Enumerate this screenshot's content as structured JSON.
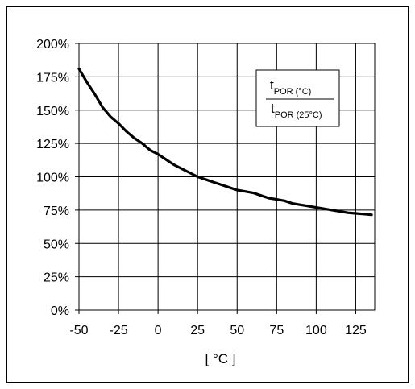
{
  "chart_data": {
    "type": "line",
    "title": "",
    "xlabel": "[ °C ]",
    "ylabel": "",
    "xlim": [
      -50,
      137
    ],
    "ylim": [
      0,
      200
    ],
    "x_ticks": [
      -50,
      -25,
      0,
      25,
      50,
      75,
      100,
      125
    ],
    "x_tick_labels": [
      "-50",
      "-25",
      "0",
      "25",
      "50",
      "75",
      "100",
      "125"
    ],
    "y_ticks": [
      0,
      25,
      50,
      75,
      100,
      125,
      150,
      175,
      200
    ],
    "y_tick_labels": [
      "0%",
      "25%",
      "50%",
      "75%",
      "100%",
      "125%",
      "150%",
      "175%",
      "200%"
    ],
    "grid": true,
    "legend": {
      "position": "top-right",
      "numerator_main": "t",
      "numerator_sub": "POR (°C)",
      "denominator_main": "t",
      "denominator_sub": "POR (25°C)"
    },
    "series": [
      {
        "name": "",
        "color": "#000000",
        "x": [
          -50,
          -45,
          -40,
          -35,
          -30,
          -25,
          -20,
          -15,
          -10,
          -5,
          0,
          5,
          10,
          15,
          20,
          25,
          30,
          35,
          40,
          45,
          50,
          55,
          60,
          65,
          70,
          75,
          80,
          85,
          90,
          95,
          100,
          105,
          110,
          115,
          120,
          125,
          130,
          135
        ],
        "values": [
          181,
          171,
          162,
          152,
          145,
          140,
          134,
          129,
          125,
          120,
          117,
          113,
          109,
          106,
          103,
          100,
          98,
          96,
          94,
          92,
          90,
          89,
          88,
          86,
          84,
          83,
          82,
          80,
          79,
          78,
          77,
          76,
          75,
          74,
          73,
          72.5,
          72,
          71.5
        ]
      }
    ]
  }
}
